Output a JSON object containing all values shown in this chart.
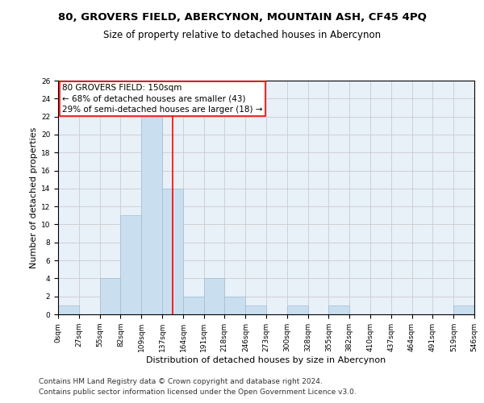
{
  "title_line1": "80, GROVERS FIELD, ABERCYNON, MOUNTAIN ASH, CF45 4PQ",
  "title_line2": "Size of property relative to detached houses in Abercynon",
  "xlabel": "Distribution of detached houses by size in Abercynon",
  "ylabel": "Number of detached properties",
  "bin_edges": [
    0,
    27,
    55,
    82,
    109,
    137,
    164,
    191,
    218,
    246,
    273,
    300,
    328,
    355,
    382,
    410,
    437,
    464,
    491,
    519,
    546
  ],
  "bin_labels": [
    "0sqm",
    "27sqm",
    "55sqm",
    "82sqm",
    "109sqm",
    "137sqm",
    "164sqm",
    "191sqm",
    "218sqm",
    "246sqm",
    "273sqm",
    "300sqm",
    "328sqm",
    "355sqm",
    "382sqm",
    "410sqm",
    "437sqm",
    "464sqm",
    "491sqm",
    "519sqm",
    "546sqm"
  ],
  "counts": [
    1,
    0,
    4,
    11,
    22,
    14,
    2,
    4,
    2,
    1,
    0,
    1,
    0,
    1,
    0,
    0,
    0,
    0,
    0,
    1
  ],
  "bar_color": "#c9dff0",
  "bar_edge_color": "#a0bcd4",
  "reference_line_x": 150,
  "reference_line_color": "red",
  "annotation_line1": "80 GROVERS FIELD: 150sqm",
  "annotation_line2": "← 68% of detached houses are smaller (43)",
  "annotation_line3": "29% of semi-detached houses are larger (18) →",
  "ylim": [
    0,
    26
  ],
  "yticks": [
    0,
    2,
    4,
    6,
    8,
    10,
    12,
    14,
    16,
    18,
    20,
    22,
    24,
    26
  ],
  "grid_color": "#cccccc",
  "background_color": "#e8f0f8",
  "footer_line1": "Contains HM Land Registry data © Crown copyright and database right 2024.",
  "footer_line2": "Contains public sector information licensed under the Open Government Licence v3.0.",
  "title_fontsize": 9.5,
  "subtitle_fontsize": 8.5,
  "annotation_fontsize": 7.5,
  "axis_label_fontsize": 8,
  "tick_fontsize": 6.5,
  "footer_fontsize": 6.5,
  "ylabel_fontsize": 8
}
